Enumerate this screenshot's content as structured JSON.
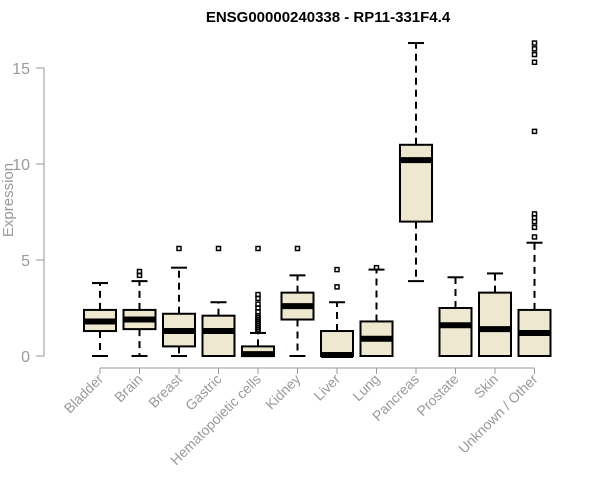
{
  "chart_data": {
    "type": "boxplot",
    "title": "ENSG00000240338 - RP11-331F4.4",
    "xlabel": "",
    "ylabel": "Expression",
    "ylim": [
      0,
      16.5
    ],
    "yticks": [
      0,
      5,
      10,
      15
    ],
    "box_fill": "#efe8d0",
    "categories": [
      "Bladder",
      "Brain",
      "Breast",
      "Gastric",
      "Hematopoietic cells",
      "Kidney",
      "Liver",
      "Lung",
      "Pancreas",
      "Prostate",
      "Skin",
      "Unknown / Other"
    ],
    "boxes": [
      {
        "min": 0,
        "q1": 1.3,
        "median": 1.8,
        "q3": 2.4,
        "max": 3.8,
        "outliers": []
      },
      {
        "min": 0,
        "q1": 1.4,
        "median": 1.9,
        "q3": 2.4,
        "max": 3.9,
        "outliers": [
          4.2,
          4.4
        ]
      },
      {
        "min": 0,
        "q1": 0.5,
        "median": 1.3,
        "q3": 2.2,
        "max": 4.6,
        "outliers": [
          5.6
        ]
      },
      {
        "min": 0,
        "q1": 0,
        "median": 1.3,
        "q3": 2.1,
        "max": 2.8,
        "outliers": [
          5.6
        ]
      },
      {
        "min": 0,
        "q1": 0,
        "median": 0.1,
        "q3": 0.5,
        "max": 1.2,
        "outliers": [
          1.3,
          1.4,
          1.5,
          1.6,
          1.7,
          1.8,
          1.9,
          2.0,
          2.1,
          2.3,
          2.5,
          2.7,
          3.0,
          3.2,
          5.6
        ]
      },
      {
        "min": 0,
        "q1": 1.9,
        "median": 2.6,
        "q3": 3.3,
        "max": 4.2,
        "outliers": [
          5.6
        ]
      },
      {
        "min": 0,
        "q1": 0,
        "median": 0.05,
        "q3": 1.3,
        "max": 2.8,
        "outliers": [
          3.6,
          4.5
        ]
      },
      {
        "min": 0,
        "q1": 0,
        "median": 0.9,
        "q3": 1.8,
        "max": 4.5,
        "outliers": [
          4.6
        ]
      },
      {
        "min": 3.9,
        "q1": 7.0,
        "median": 10.2,
        "q3": 11.0,
        "max": 16.3,
        "outliers": []
      },
      {
        "min": 0,
        "q1": 0,
        "median": 1.6,
        "q3": 2.5,
        "max": 4.1,
        "outliers": []
      },
      {
        "min": 0,
        "q1": 0,
        "median": 1.4,
        "q3": 3.3,
        "max": 4.3,
        "outliers": []
      },
      {
        "min": 0,
        "q1": 0,
        "median": 1.2,
        "q3": 2.4,
        "max": 5.9,
        "outliers": [
          6.2,
          6.7,
          7.0,
          7.2,
          7.4,
          11.7,
          15.3,
          15.7,
          16.0,
          16.3
        ]
      }
    ]
  }
}
